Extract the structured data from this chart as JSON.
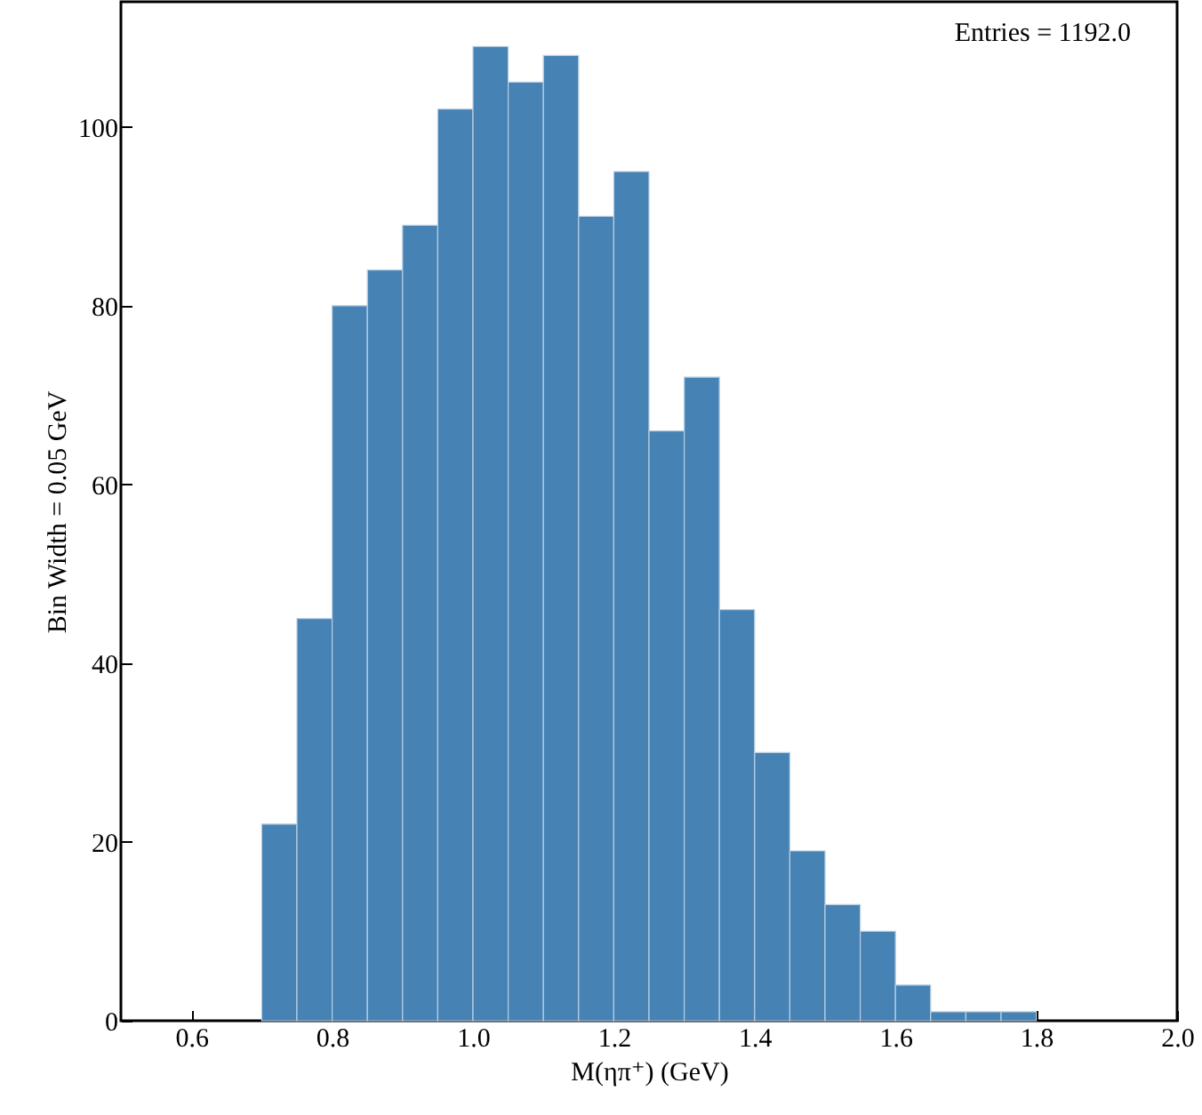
{
  "chart_data": {
    "type": "histogram",
    "xlabel": "M(ηπ⁺) (GeV)",
    "ylabel": "Bin Width = 0.05 GeV",
    "annotations": [
      "Entries = 1192.0"
    ],
    "bins": [
      0.7,
      0.75,
      0.8,
      0.85,
      0.9,
      0.95,
      1.0,
      1.05,
      1.1,
      1.15,
      1.2,
      1.25,
      1.3,
      1.35,
      1.4,
      1.45,
      1.5,
      1.55,
      1.6,
      1.65,
      1.7,
      1.75,
      1.8
    ],
    "values": [
      22,
      45,
      80,
      84,
      89,
      102,
      109,
      105,
      108,
      90,
      95,
      66,
      72,
      46,
      30,
      19,
      13,
      10,
      4,
      1,
      1,
      1
    ],
    "color": "#4682b4",
    "xlim": [
      0.5,
      2.0
    ],
    "ylim": [
      0,
      114
    ],
    "xticks": [
      0.6,
      0.8,
      {
        "value": 1.0,
        "label": "1.0"
      },
      1.2,
      1.4,
      1.6,
      1.8,
      {
        "value": 2.0,
        "label": "2.0"
      }
    ],
    "yticks": [
      0,
      20,
      40,
      60,
      80,
      100
    ],
    "grid": false
  }
}
